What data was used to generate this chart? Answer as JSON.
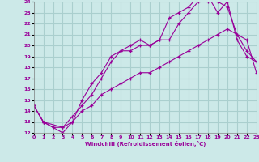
{
  "xlabel": "Windchill (Refroidissement éolien,°C)",
  "background_color": "#cce9e8",
  "grid_color": "#aacfce",
  "line_color": "#990099",
  "xlim": [
    0,
    23
  ],
  "ylim": [
    12,
    24
  ],
  "yticks": [
    12,
    13,
    14,
    15,
    16,
    17,
    18,
    19,
    20,
    21,
    22,
    23,
    24
  ],
  "xticks": [
    0,
    1,
    2,
    3,
    4,
    5,
    6,
    7,
    8,
    9,
    10,
    11,
    12,
    13,
    14,
    15,
    16,
    17,
    18,
    19,
    20,
    21,
    22,
    23
  ],
  "line1_x": [
    0,
    1,
    3,
    4,
    5,
    6,
    7,
    8,
    9,
    10,
    11,
    12,
    13,
    14,
    15,
    16,
    17,
    18,
    19,
    20,
    21,
    22,
    23
  ],
  "line1_y": [
    14.5,
    13.0,
    12.5,
    13.5,
    14.5,
    15.5,
    17.0,
    18.5,
    19.5,
    19.5,
    20.0,
    20.0,
    20.5,
    20.5,
    22.0,
    23.0,
    24.0,
    24.0,
    24.0,
    23.5,
    21.0,
    19.5,
    18.5
  ],
  "line2_x": [
    0,
    1,
    3,
    4,
    5,
    6,
    7,
    8,
    9,
    10,
    11,
    12,
    13,
    14,
    15,
    16,
    17,
    18,
    19,
    20,
    21,
    22,
    23
  ],
  "line2_y": [
    14.5,
    13.0,
    12.0,
    13.0,
    15.0,
    16.5,
    17.5,
    19.0,
    19.5,
    20.0,
    20.5,
    20.0,
    20.5,
    22.5,
    23.0,
    23.5,
    24.5,
    24.5,
    23.0,
    24.0,
    20.5,
    19.0,
    18.5
  ],
  "line3_x": [
    0,
    1,
    2,
    3,
    4,
    5,
    6,
    7,
    8,
    9,
    10,
    11,
    12,
    13,
    14,
    15,
    16,
    17,
    18,
    19,
    20,
    21,
    22,
    23
  ],
  "line3_y": [
    14.5,
    13.0,
    12.5,
    12.5,
    13.0,
    14.0,
    14.5,
    15.5,
    16.0,
    16.5,
    17.0,
    17.5,
    17.5,
    18.0,
    18.5,
    19.0,
    19.5,
    20.0,
    20.5,
    21.0,
    21.5,
    21.0,
    20.5,
    17.5
  ]
}
